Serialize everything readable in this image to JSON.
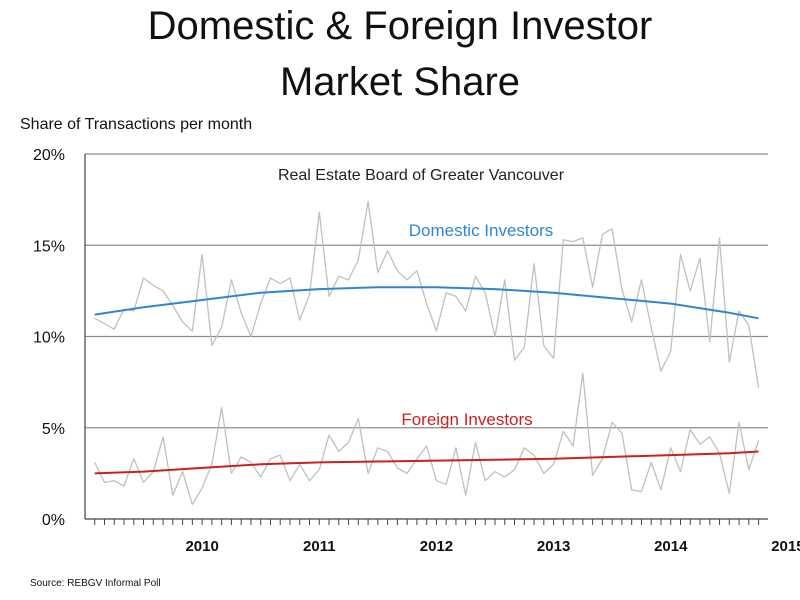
{
  "title_line1": "Domestic & Foreign Investor",
  "title_line2": "Market Share",
  "source": "Source: REBGV Informal Poll",
  "chart_data": {
    "type": "line",
    "ylabel": "Share of Transactions per month",
    "annotation": "Real Estate Board of Greater Vancouver",
    "ylim": [
      0,
      20
    ],
    "yticks": [
      "0%",
      "5%",
      "10%",
      "15%",
      "20%"
    ],
    "ytick_values": [
      0,
      5,
      10,
      15,
      20
    ],
    "xticks": [
      "2010",
      "2011",
      "2012",
      "2013",
      "2014",
      "2015"
    ],
    "xlim": [
      2009.5,
      2015.33
    ],
    "grid": true,
    "series": [
      {
        "name": "Domestic Investors",
        "kind": "monthly",
        "color": "#c0c0c0",
        "start": 2009.583,
        "step": 0.08333,
        "values": [
          11.0,
          10.7,
          10.4,
          11.5,
          11.4,
          13.2,
          12.8,
          12.5,
          11.7,
          10.8,
          10.3,
          14.5,
          9.5,
          10.5,
          13.1,
          11.3,
          10.0,
          11.8,
          13.2,
          12.9,
          13.2,
          10.9,
          12.3,
          16.8,
          12.2,
          13.3,
          13.1,
          14.2,
          17.4,
          13.5,
          14.7,
          13.6,
          13.1,
          13.6,
          11.8,
          10.3,
          12.4,
          12.2,
          11.4,
          13.3,
          12.4,
          10.0,
          13.1,
          8.7,
          9.4,
          14.0,
          9.5,
          8.8,
          15.3,
          15.2,
          15.4,
          12.7,
          15.6,
          15.9,
          12.6,
          10.8,
          13.1,
          10.5,
          8.1,
          9.2,
          14.5,
          12.5,
          14.3,
          9.7,
          15.4,
          8.6,
          11.4,
          10.6,
          7.2
        ]
      },
      {
        "name": "Domestic Investors trend",
        "kind": "trend",
        "color": "#2e86d0",
        "x": [
          2009.583,
          2010.0,
          2010.5,
          2011.0,
          2011.5,
          2012.0,
          2012.5,
          2013.0,
          2013.5,
          2014.0,
          2014.5,
          2015.0,
          2015.25
        ],
        "values": [
          11.2,
          11.6,
          12.0,
          12.4,
          12.6,
          12.7,
          12.7,
          12.6,
          12.4,
          12.1,
          11.8,
          11.3,
          11.0
        ]
      },
      {
        "name": "Foreign Investors",
        "kind": "monthly",
        "color": "#c0c0c0",
        "start": 2009.583,
        "step": 0.08333,
        "values": [
          3.1,
          2.0,
          2.1,
          1.8,
          3.3,
          2.0,
          2.6,
          4.5,
          1.3,
          2.6,
          0.8,
          1.7,
          3.0,
          6.1,
          2.5,
          3.4,
          3.1,
          2.3,
          3.3,
          3.5,
          2.1,
          3.0,
          2.1,
          2.7,
          4.6,
          3.7,
          4.2,
          5.5,
          2.5,
          3.9,
          3.7,
          2.8,
          2.5,
          3.3,
          4.0,
          2.1,
          1.9,
          3.9,
          1.3,
          4.2,
          2.1,
          2.6,
          2.3,
          2.7,
          3.9,
          3.5,
          2.5,
          3.0,
          4.8,
          4.0,
          8.0,
          2.4,
          3.3,
          5.3,
          4.7,
          1.6,
          1.5,
          3.1,
          1.6,
          3.9,
          2.6,
          4.9,
          4.1,
          4.5,
          3.6,
          1.4,
          5.3,
          2.7,
          4.3
        ]
      },
      {
        "name": "Foreign Investors trend",
        "kind": "trend",
        "color": "#cc2020",
        "x": [
          2009.583,
          2010.0,
          2010.5,
          2011.0,
          2011.5,
          2012.0,
          2012.5,
          2013.0,
          2013.5,
          2014.0,
          2014.5,
          2015.0,
          2015.25
        ],
        "values": [
          2.5,
          2.6,
          2.8,
          3.0,
          3.1,
          3.15,
          3.2,
          3.25,
          3.3,
          3.4,
          3.5,
          3.6,
          3.7
        ]
      }
    ],
    "labels": {
      "domestic": "Domestic Investors",
      "foreign": "Foreign Investors"
    }
  }
}
